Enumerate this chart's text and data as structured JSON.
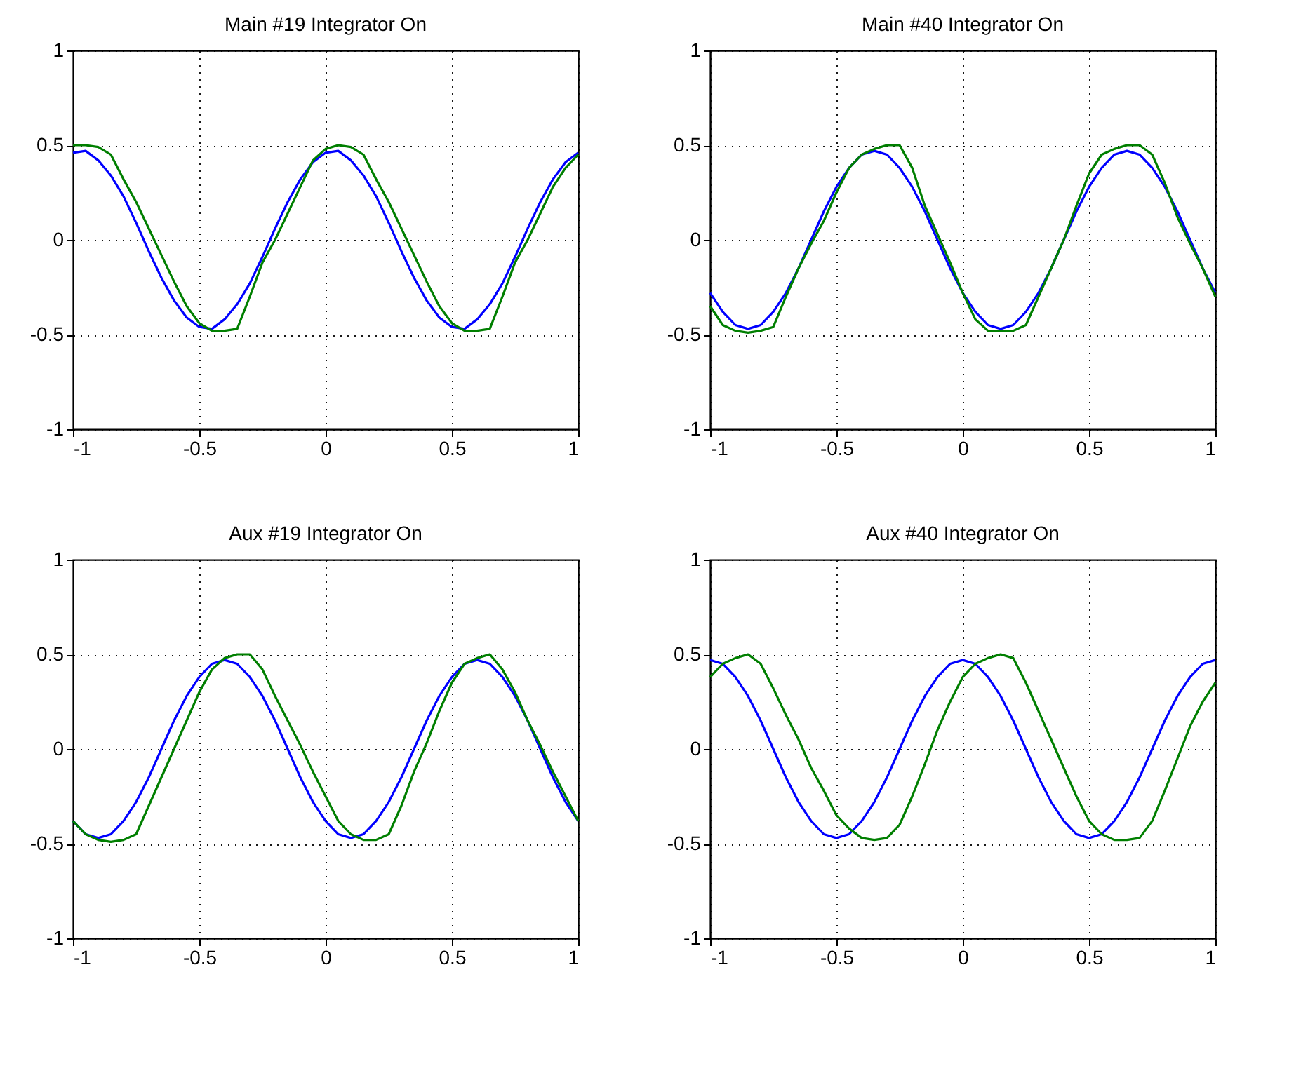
{
  "chart_data": [
    {
      "type": "line",
      "title": "Main #19 Integrator On",
      "xlim": [
        -1,
        1
      ],
      "ylim": [
        -1,
        1
      ],
      "xticks": [
        -1,
        -0.5,
        0,
        0.5,
        1
      ],
      "yticks": [
        -1,
        -0.5,
        0,
        0.5,
        1
      ],
      "grid": true,
      "line_style": "solid",
      "x": [
        -1,
        -0.95,
        -0.9,
        -0.85,
        -0.8,
        -0.75,
        -0.7,
        -0.65,
        -0.6,
        -0.55,
        -0.5,
        -0.45,
        -0.4,
        -0.35,
        -0.3,
        -0.25,
        -0.2,
        -0.15,
        -0.1,
        -0.05,
        0,
        0.05,
        0.1,
        0.15,
        0.2,
        0.25,
        0.3,
        0.35,
        0.4,
        0.45,
        0.5,
        0.55,
        0.6,
        0.65,
        0.7,
        0.75,
        0.8,
        0.85,
        0.9,
        0.95,
        1
      ],
      "series": [
        {
          "color": "#0000ff",
          "values": [
            0.46,
            0.47,
            0.42,
            0.34,
            0.23,
            0.09,
            -0.06,
            -0.2,
            -0.32,
            -0.41,
            -0.46,
            -0.47,
            -0.42,
            -0.34,
            -0.23,
            -0.09,
            0.06,
            0.2,
            0.32,
            0.41,
            0.46,
            0.47,
            0.42,
            0.34,
            0.23,
            0.09,
            -0.06,
            -0.2,
            -0.32,
            -0.41,
            -0.46,
            -0.47,
            -0.42,
            -0.34,
            -0.23,
            -0.09,
            0.06,
            0.2,
            0.32,
            0.41,
            0.46
          ]
        },
        {
          "color": "#007f00",
          "values": [
            0.5,
            0.5,
            0.49,
            0.45,
            0.32,
            0.2,
            0.06,
            -0.08,
            -0.22,
            -0.35,
            -0.44,
            -0.48,
            -0.48,
            -0.47,
            -0.3,
            -0.12,
            0.0,
            0.14,
            0.28,
            0.42,
            0.48,
            0.5,
            0.49,
            0.45,
            0.32,
            0.2,
            0.06,
            -0.08,
            -0.22,
            -0.35,
            -0.44,
            -0.48,
            -0.48,
            -0.47,
            -0.3,
            -0.12,
            0.0,
            0.14,
            0.28,
            0.38,
            0.45
          ]
        }
      ]
    },
    {
      "type": "line",
      "title": "Main #40 Integrator On",
      "xlim": [
        -1,
        1
      ],
      "ylim": [
        -1,
        1
      ],
      "xticks": [
        -1,
        -0.5,
        0,
        0.5,
        1
      ],
      "yticks": [
        -1,
        -0.5,
        0,
        0.5,
        1
      ],
      "grid": true,
      "line_style": "solid",
      "x": [
        -1,
        -0.95,
        -0.9,
        -0.85,
        -0.8,
        -0.75,
        -0.7,
        -0.65,
        -0.6,
        -0.55,
        -0.5,
        -0.45,
        -0.4,
        -0.35,
        -0.3,
        -0.25,
        -0.2,
        -0.15,
        -0.1,
        -0.05,
        0,
        0.05,
        0.1,
        0.15,
        0.2,
        0.25,
        0.3,
        0.35,
        0.4,
        0.45,
        0.5,
        0.55,
        0.6,
        0.65,
        0.7,
        0.75,
        0.8,
        0.85,
        0.9,
        0.95,
        1
      ],
      "series": [
        {
          "color": "#0000ff",
          "values": [
            -0.28,
            -0.38,
            -0.45,
            -0.47,
            -0.45,
            -0.38,
            -0.28,
            -0.15,
            0,
            0.15,
            0.28,
            0.38,
            0.45,
            0.47,
            0.45,
            0.38,
            0.28,
            0.15,
            0,
            -0.15,
            -0.28,
            -0.38,
            -0.45,
            -0.47,
            -0.45,
            -0.38,
            -0.28,
            -0.15,
            0,
            0.15,
            0.28,
            0.38,
            0.45,
            0.47,
            0.45,
            0.38,
            0.28,
            0.15,
            0,
            -0.15,
            -0.28
          ]
        },
        {
          "color": "#007f00",
          "values": [
            -0.35,
            -0.45,
            -0.48,
            -0.49,
            -0.48,
            -0.46,
            -0.3,
            -0.15,
            -0.02,
            0.1,
            0.25,
            0.38,
            0.45,
            0.48,
            0.5,
            0.5,
            0.38,
            0.18,
            0.03,
            -0.12,
            -0.28,
            -0.42,
            -0.48,
            -0.48,
            -0.48,
            -0.45,
            -0.3,
            -0.15,
            0.0,
            0.18,
            0.35,
            0.45,
            0.48,
            0.5,
            0.5,
            0.45,
            0.3,
            0.12,
            -0.02,
            -0.15,
            -0.3
          ]
        }
      ]
    },
    {
      "type": "line",
      "title": "Aux #19 Integrator On",
      "xlim": [
        -1,
        1
      ],
      "ylim": [
        -1,
        1
      ],
      "xticks": [
        -1,
        -0.5,
        0,
        0.5,
        1
      ],
      "yticks": [
        -1,
        -0.5,
        0,
        0.5,
        1
      ],
      "grid": true,
      "line_style": "solid",
      "x": [
        -1,
        -0.95,
        -0.9,
        -0.85,
        -0.8,
        -0.75,
        -0.7,
        -0.65,
        -0.6,
        -0.55,
        -0.5,
        -0.45,
        -0.4,
        -0.35,
        -0.3,
        -0.25,
        -0.2,
        -0.15,
        -0.1,
        -0.05,
        0,
        0.05,
        0.1,
        0.15,
        0.2,
        0.25,
        0.3,
        0.35,
        0.4,
        0.45,
        0.5,
        0.55,
        0.6,
        0.65,
        0.7,
        0.75,
        0.8,
        0.85,
        0.9,
        0.95,
        1
      ],
      "series": [
        {
          "color": "#0000ff",
          "values": [
            -0.38,
            -0.45,
            -0.47,
            -0.45,
            -0.38,
            -0.28,
            -0.15,
            0,
            0.15,
            0.28,
            0.38,
            0.45,
            0.47,
            0.45,
            0.38,
            0.28,
            0.15,
            0,
            -0.15,
            -0.28,
            -0.38,
            -0.45,
            -0.47,
            -0.45,
            -0.38,
            -0.28,
            -0.15,
            0,
            0.15,
            0.28,
            0.38,
            0.45,
            0.47,
            0.45,
            0.38,
            0.28,
            0.15,
            0,
            -0.15,
            -0.28,
            -0.38
          ]
        },
        {
          "color": "#007f00",
          "values": [
            -0.38,
            -0.45,
            -0.48,
            -0.49,
            -0.48,
            -0.45,
            -0.3,
            -0.15,
            0.0,
            0.15,
            0.3,
            0.42,
            0.48,
            0.5,
            0.5,
            0.42,
            0.28,
            0.15,
            0.02,
            -0.12,
            -0.25,
            -0.38,
            -0.45,
            -0.48,
            -0.48,
            -0.45,
            -0.3,
            -0.12,
            0.03,
            0.2,
            0.35,
            0.45,
            0.48,
            0.5,
            0.42,
            0.3,
            0.15,
            0.02,
            -0.12,
            -0.25,
            -0.38
          ]
        }
      ]
    },
    {
      "type": "line",
      "title": "Aux #40 Integrator On",
      "xlim": [
        -1,
        1
      ],
      "ylim": [
        -1,
        1
      ],
      "xticks": [
        -1,
        -0.5,
        0,
        0.5,
        1
      ],
      "yticks": [
        -1,
        -0.5,
        0,
        0.5,
        1
      ],
      "grid": true,
      "line_style": "solid",
      "x": [
        -1,
        -0.95,
        -0.9,
        -0.85,
        -0.8,
        -0.75,
        -0.7,
        -0.65,
        -0.6,
        -0.55,
        -0.5,
        -0.45,
        -0.4,
        -0.35,
        -0.3,
        -0.25,
        -0.2,
        -0.15,
        -0.1,
        -0.05,
        0,
        0.05,
        0.1,
        0.15,
        0.2,
        0.25,
        0.3,
        0.35,
        0.4,
        0.45,
        0.5,
        0.55,
        0.6,
        0.65,
        0.7,
        0.75,
        0.8,
        0.85,
        0.9,
        0.95,
        1
      ],
      "series": [
        {
          "color": "#0000ff",
          "values": [
            0.47,
            0.45,
            0.38,
            0.28,
            0.15,
            0,
            -0.15,
            -0.28,
            -0.38,
            -0.45,
            -0.47,
            -0.45,
            -0.38,
            -0.28,
            -0.15,
            0,
            0.15,
            0.28,
            0.38,
            0.45,
            0.47,
            0.45,
            0.38,
            0.28,
            0.15,
            0,
            -0.15,
            -0.28,
            -0.38,
            -0.45,
            -0.47,
            -0.45,
            -0.38,
            -0.28,
            -0.15,
            0,
            0.15,
            0.28,
            0.38,
            0.45,
            0.47
          ]
        },
        {
          "color": "#007f00",
          "values": [
            0.38,
            0.45,
            0.48,
            0.5,
            0.45,
            0.32,
            0.18,
            0.05,
            -0.1,
            -0.22,
            -0.35,
            -0.42,
            -0.47,
            -0.48,
            -0.47,
            -0.4,
            -0.25,
            -0.08,
            0.1,
            0.25,
            0.38,
            0.45,
            0.48,
            0.5,
            0.48,
            0.35,
            0.2,
            0.05,
            -0.1,
            -0.25,
            -0.38,
            -0.45,
            -0.48,
            -0.48,
            -0.47,
            -0.38,
            -0.22,
            -0.05,
            0.12,
            0.25,
            0.35
          ]
        }
      ]
    }
  ]
}
